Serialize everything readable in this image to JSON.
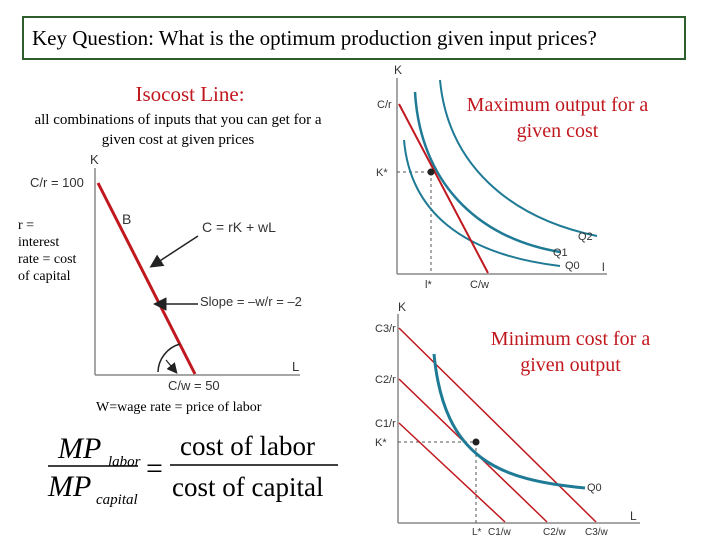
{
  "key_question": "Key Question:  What is the optimum production given input prices?",
  "isocost": {
    "title": "Isocost Line:",
    "description": "all combinations of inputs that you can get for a given cost at given prices",
    "k_axis": "K",
    "l_axis": "L",
    "k_intercept": "C/r = 100",
    "l_intercept": "C/w = 50",
    "point_label": "B",
    "equation": "C = rK + wL",
    "slope": "Slope = –w/r = –2",
    "r_note": "r = interest rate = cost of capital",
    "w_note": "W=wage rate = price of labor"
  },
  "max_output": {
    "caption": "Maximum output for a given cost",
    "k_axis": "K",
    "l_axis": "l",
    "k_intercept": "C/r",
    "k_star": "K*",
    "l_star": "l*",
    "l_intercept": "C/w",
    "q2": "Q2",
    "q1": "Q1",
    "q0": "Q0"
  },
  "min_cost": {
    "caption": "Minimum cost for a given output",
    "k_axis": "K",
    "l_axis": "L",
    "c3r": "C3/r",
    "c2r": "C2/r",
    "c1r": "C1/r",
    "k_star": "K*",
    "l_star": "L*",
    "c1w": "C1/w",
    "c2w": "C2/w",
    "c3w": "C3/w",
    "q0": "Q0"
  },
  "formula": {
    "lhs_num": "MP",
    "lhs_num_sub": "labor",
    "lhs_den": "MP",
    "lhs_den_sub": "capital",
    "equals": "=",
    "rhs_num": "cost of labor",
    "rhs_den": "cost of capital"
  },
  "colors": {
    "red": "#c0181e",
    "blue": "#1f7a96",
    "frame": "#2e5e2e"
  }
}
